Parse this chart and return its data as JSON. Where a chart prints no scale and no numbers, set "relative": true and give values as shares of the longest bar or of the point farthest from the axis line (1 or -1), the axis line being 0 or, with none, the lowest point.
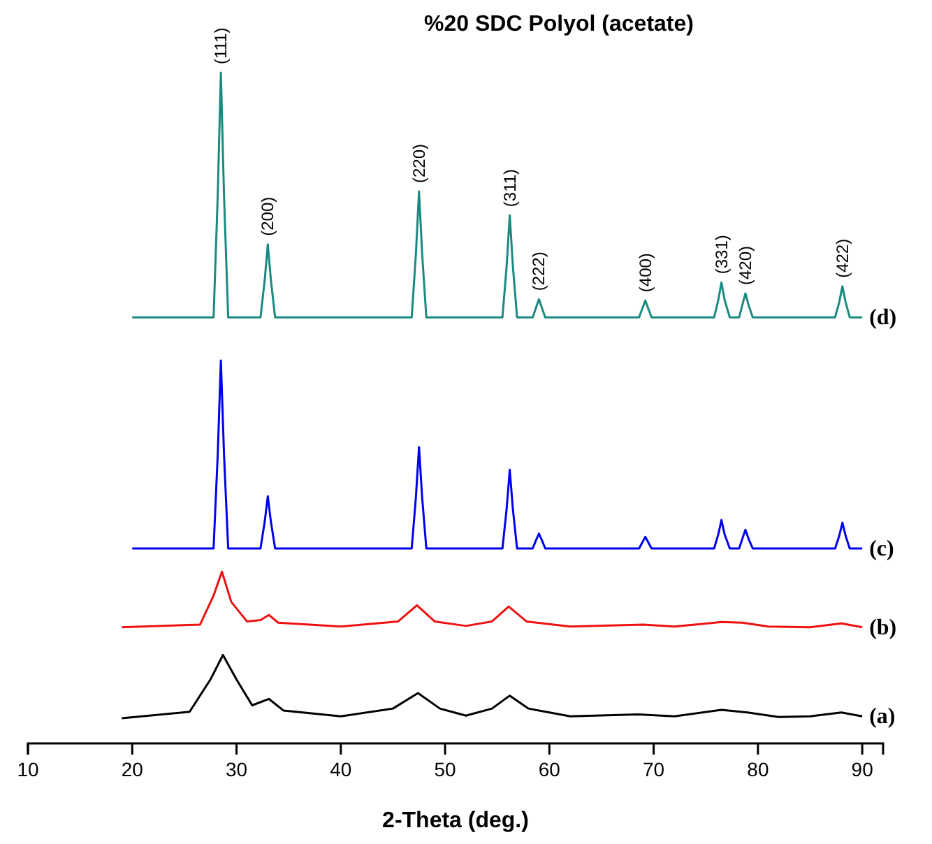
{
  "chart_data": {
    "type": "line",
    "title": "%20 SDC Polyol (acetate)",
    "xlabel": "2-Theta (deg.)",
    "relative": true,
    "xlim": [
      10,
      92
    ],
    "xticks": [
      10,
      20,
      30,
      40,
      50,
      60,
      70,
      80,
      90
    ],
    "tick_labels": "x",
    "grid": false,
    "series": [
      {
        "name": "(d)",
        "color": "#1a8a80",
        "x": [
          20,
          27.8,
          28.2,
          28.5,
          28.8,
          29.2,
          32.3,
          32.7,
          33.0,
          33.3,
          33.7,
          46.8,
          47.2,
          47.5,
          47.8,
          48.2,
          55.5,
          55.9,
          56.2,
          56.5,
          56.9,
          58.4,
          58.7,
          59.0,
          59.3,
          59.6,
          68.6,
          68.9,
          69.2,
          69.5,
          69.8,
          75.8,
          76.2,
          76.5,
          76.8,
          77.3,
          78.2,
          78.5,
          78.8,
          79.1,
          79.5,
          87.4,
          87.8,
          88.1,
          88.4,
          88.8,
          90
        ],
        "values": [
          0.621,
          0.621,
          0.81,
          1.0,
          0.81,
          0.621,
          0.621,
          0.678,
          0.734,
          0.678,
          0.621,
          0.621,
          0.719,
          0.816,
          0.719,
          0.621,
          0.621,
          0.7,
          0.779,
          0.7,
          0.621,
          0.621,
          0.635,
          0.649,
          0.635,
          0.621,
          0.621,
          0.634,
          0.647,
          0.634,
          0.621,
          0.621,
          0.648,
          0.675,
          0.648,
          0.621,
          0.621,
          0.64,
          0.658,
          0.64,
          0.621,
          0.621,
          0.645,
          0.669,
          0.645,
          0.621,
          0.621
        ]
      },
      {
        "name": "(c)",
        "color": "#0000ee",
        "x": [
          20,
          27.8,
          28.2,
          28.5,
          28.8,
          29.2,
          32.3,
          32.7,
          33.0,
          33.3,
          33.7,
          46.8,
          47.2,
          47.5,
          47.8,
          48.2,
          55.5,
          55.9,
          56.2,
          56.5,
          56.9,
          58.4,
          58.7,
          59.0,
          59.3,
          59.6,
          68.6,
          68.9,
          69.2,
          69.5,
          69.8,
          75.8,
          76.2,
          76.5,
          76.8,
          77.3,
          78.2,
          78.5,
          78.8,
          79.1,
          79.5,
          87.4,
          87.8,
          88.1,
          88.4,
          88.8,
          90
        ],
        "values": [
          0.263,
          0.263,
          0.409,
          0.554,
          0.409,
          0.263,
          0.263,
          0.304,
          0.344,
          0.304,
          0.263,
          0.263,
          0.342,
          0.42,
          0.342,
          0.263,
          0.263,
          0.324,
          0.385,
          0.324,
          0.263,
          0.263,
          0.275,
          0.286,
          0.275,
          0.263,
          0.263,
          0.272,
          0.281,
          0.272,
          0.263,
          0.263,
          0.285,
          0.307,
          0.285,
          0.263,
          0.263,
          0.278,
          0.292,
          0.278,
          0.263,
          0.263,
          0.283,
          0.303,
          0.283,
          0.263,
          0.263
        ]
      },
      {
        "name": "(b)",
        "color": "#ee1111",
        "x": [
          19,
          26.5,
          27.8,
          28.6,
          29.5,
          31,
          32.3,
          33.1,
          34,
          40,
          45.5,
          47.3,
          49,
          52,
          54.5,
          56.1,
          57.8,
          62,
          69,
          72,
          76.5,
          78.5,
          81,
          85,
          88,
          90
        ],
        "values": [
          0.141,
          0.145,
          0.19,
          0.227,
          0.18,
          0.15,
          0.152,
          0.16,
          0.148,
          0.142,
          0.15,
          0.175,
          0.15,
          0.143,
          0.15,
          0.173,
          0.15,
          0.142,
          0.145,
          0.142,
          0.149,
          0.148,
          0.142,
          0.141,
          0.147,
          0.141
        ]
      },
      {
        "name": "(a)",
        "color": "#000000",
        "x": [
          19,
          25.5,
          27.5,
          28.7,
          30,
          31.5,
          33.1,
          34.5,
          40,
          45,
          47.4,
          49.5,
          52,
          54.5,
          56.2,
          58,
          62,
          68.5,
          72,
          76.5,
          79,
          82,
          85,
          88,
          90
        ],
        "values": [
          0,
          0.01,
          0.06,
          0.098,
          0.06,
          0.02,
          0.03,
          0.012,
          0.003,
          0.015,
          0.039,
          0.015,
          0.004,
          0.015,
          0.035,
          0.015,
          0.003,
          0.006,
          0.003,
          0.013,
          0.009,
          0.002,
          0.003,
          0.009,
          0.003
        ]
      }
    ],
    "annotations": [
      {
        "text": "(111)",
        "x": 28.5,
        "y": 1.0
      },
      {
        "text": "(200)",
        "x": 33.0,
        "y": 0.734
      },
      {
        "text": "(220)",
        "x": 47.5,
        "y": 0.816
      },
      {
        "text": "(311)",
        "x": 56.2,
        "y": 0.779
      },
      {
        "text": "(222)",
        "x": 59.0,
        "y": 0.649
      },
      {
        "text": "(400)",
        "x": 69.2,
        "y": 0.647
      },
      {
        "text": "(331)",
        "x": 76.5,
        "y": 0.675
      },
      {
        "text": "(420)",
        "x": 78.8,
        "y": 0.658
      },
      {
        "text": "(422)",
        "x": 88.1,
        "y": 0.669
      }
    ]
  }
}
